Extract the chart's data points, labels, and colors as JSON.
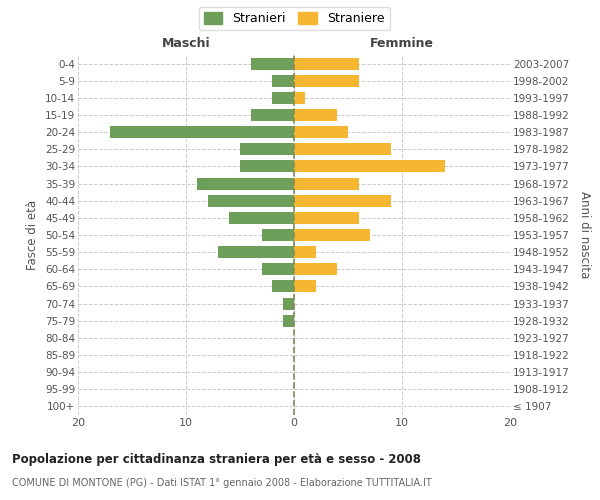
{
  "age_groups": [
    "100+",
    "95-99",
    "90-94",
    "85-89",
    "80-84",
    "75-79",
    "70-74",
    "65-69",
    "60-64",
    "55-59",
    "50-54",
    "45-49",
    "40-44",
    "35-39",
    "30-34",
    "25-29",
    "20-24",
    "15-19",
    "10-14",
    "5-9",
    "0-4"
  ],
  "birth_years": [
    "≤ 1907",
    "1908-1912",
    "1913-1917",
    "1918-1922",
    "1923-1927",
    "1928-1932",
    "1933-1937",
    "1938-1942",
    "1943-1947",
    "1948-1952",
    "1953-1957",
    "1958-1962",
    "1963-1967",
    "1968-1972",
    "1973-1977",
    "1978-1982",
    "1983-1987",
    "1988-1992",
    "1993-1997",
    "1998-2002",
    "2003-2007"
  ],
  "males": [
    0,
    0,
    0,
    0,
    0,
    1,
    1,
    2,
    3,
    7,
    3,
    6,
    8,
    9,
    5,
    5,
    17,
    4,
    2,
    2,
    4
  ],
  "females": [
    0,
    0,
    0,
    0,
    0,
    0,
    0,
    2,
    4,
    2,
    7,
    6,
    9,
    6,
    14,
    9,
    5,
    4,
    1,
    6,
    6
  ],
  "male_color": "#6d9e5a",
  "female_color": "#f5b731",
  "title_main": "Popolazione per cittadinanza straniera per età e sesso - 2008",
  "title_sub": "COMUNE DI MONTONE (PG) - Dati ISTAT 1° gennaio 2008 - Elaborazione TUTTITALIA.IT",
  "left_label": "Maschi",
  "right_label": "Femmine",
  "ylabel": "Fasce di età",
  "right_ylabel": "Anni di nascita",
  "legend_male": "Stranieri",
  "legend_female": "Straniere",
  "xlim": 20,
  "background_color": "#ffffff",
  "grid_color": "#cccccc",
  "dashed_line_color": "#888855"
}
